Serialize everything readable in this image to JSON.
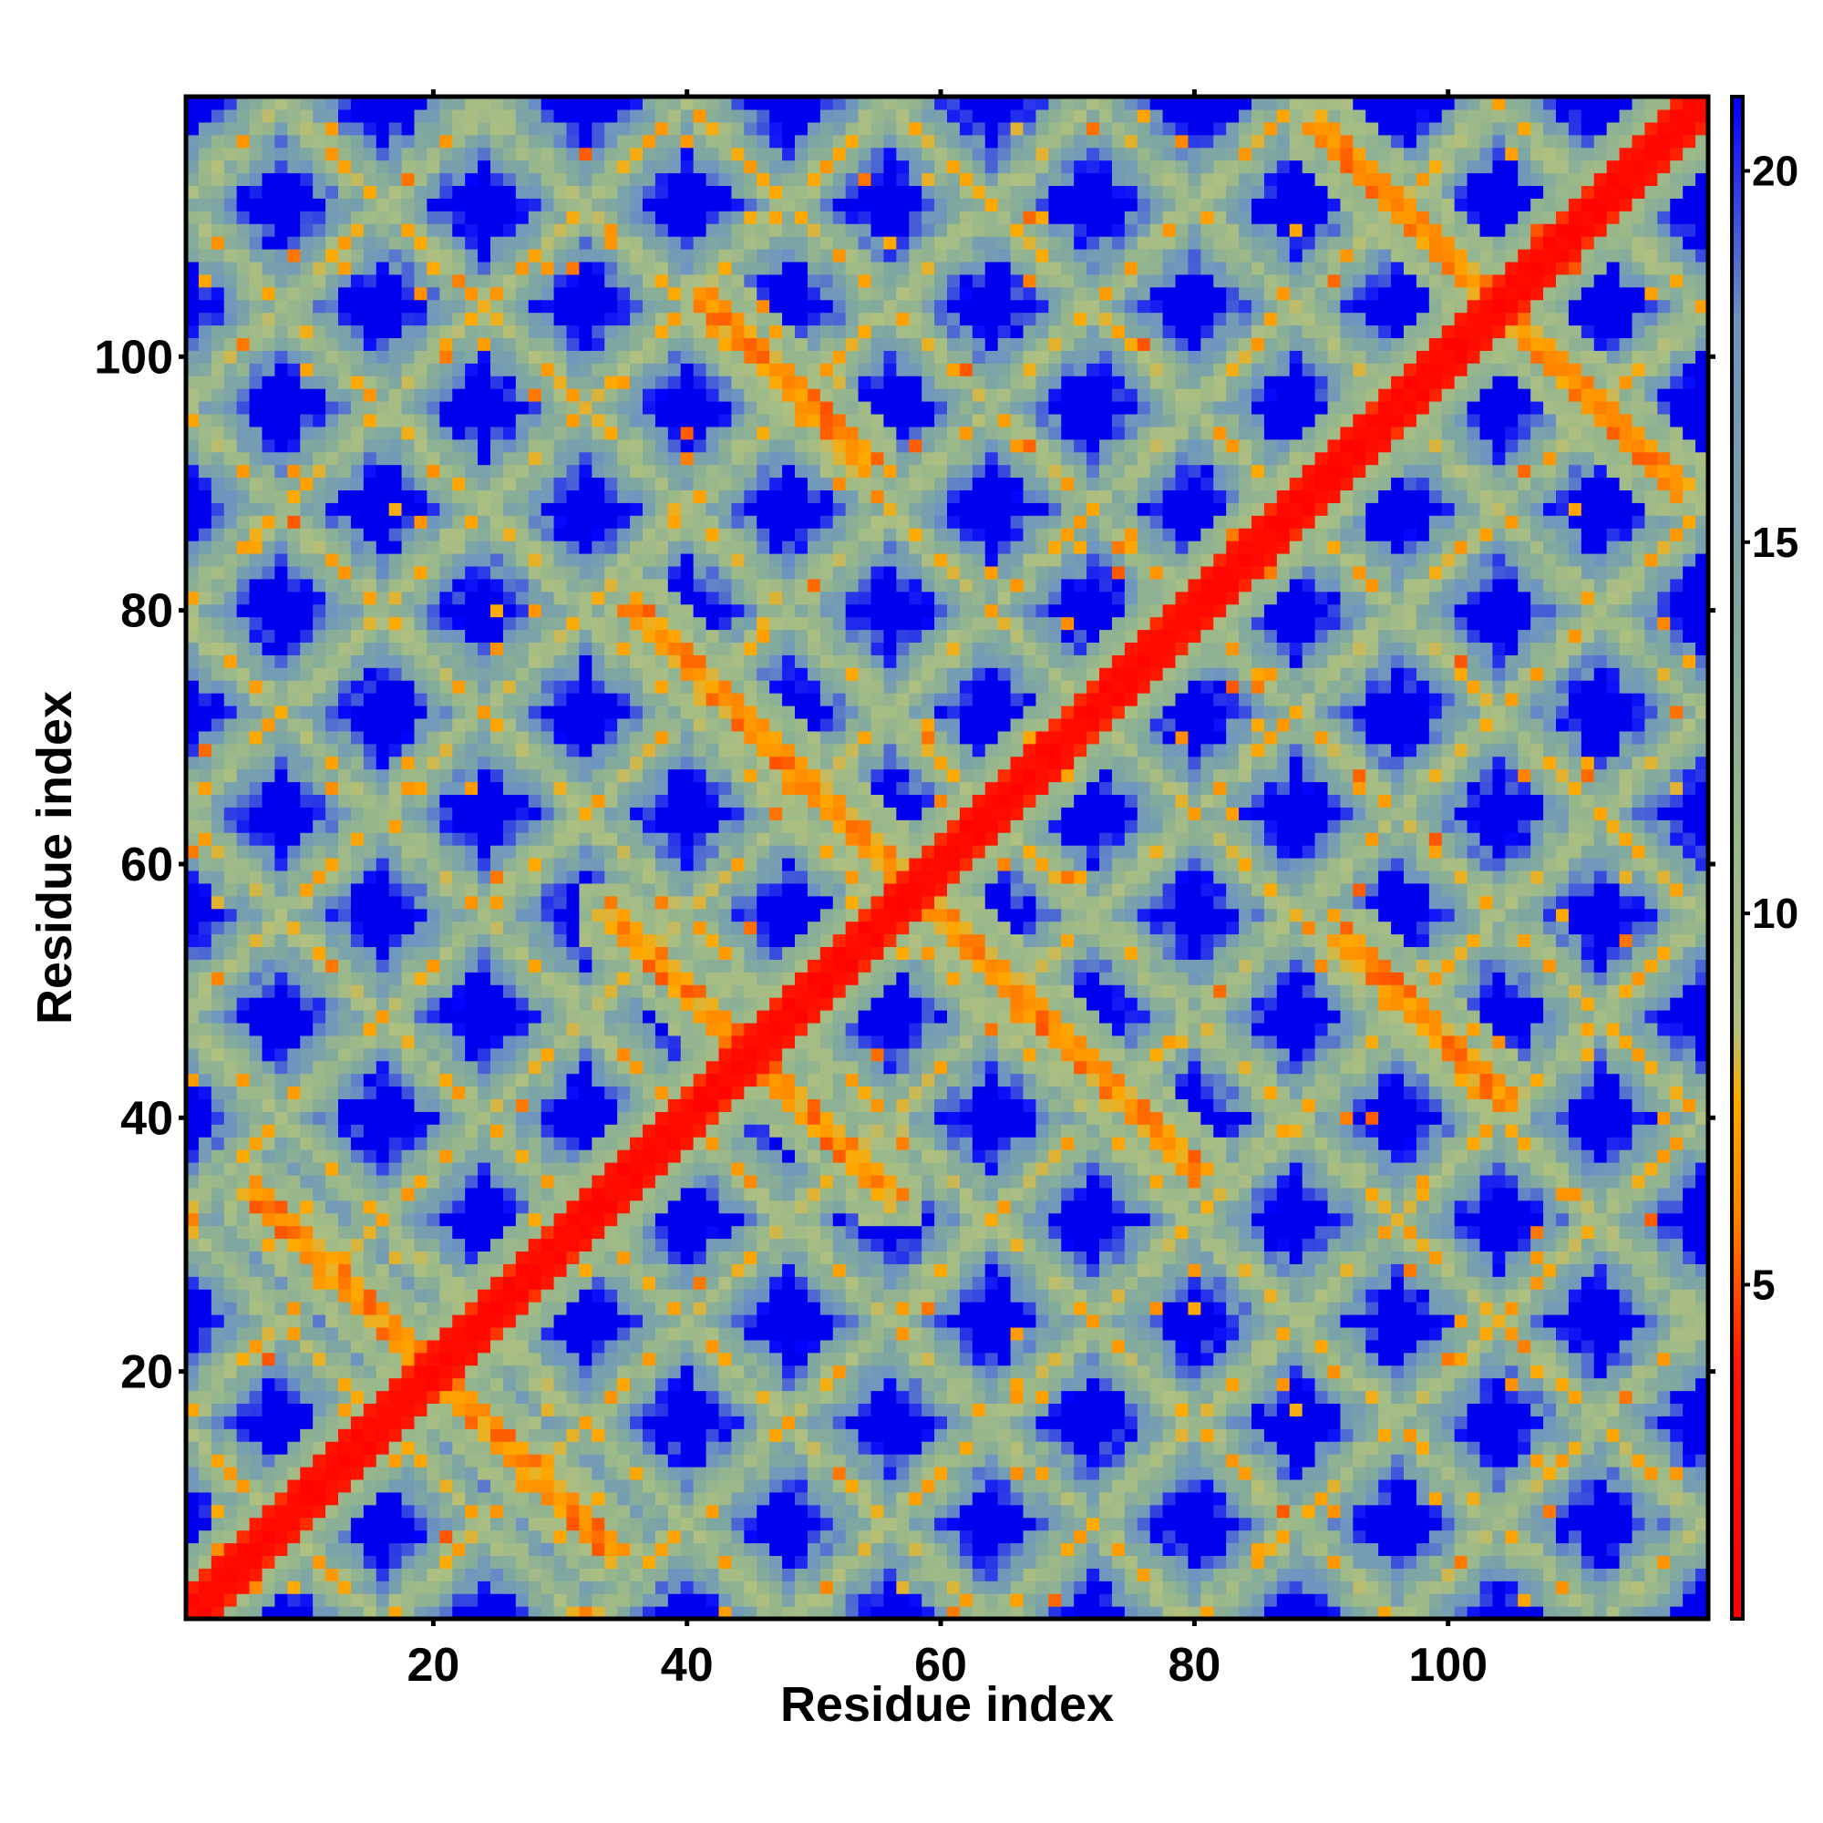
{
  "chart_data": {
    "type": "heatmap",
    "title": "",
    "xlabel": "Residue index",
    "ylabel": "Residue index",
    "n_residues": 120,
    "xlim": [
      0.5,
      120.5
    ],
    "ylim": [
      0.5,
      120.5
    ],
    "x_ticks": [
      20,
      40,
      60,
      80,
      100
    ],
    "y_ticks": [
      20,
      40,
      60,
      80,
      100
    ],
    "colorbar": {
      "ticks": [
        5,
        10,
        15,
        20
      ],
      "range": [
        0.5,
        21
      ],
      "max_color_value": 21,
      "colors": [
        {
          "value": 0.5,
          "color": "#ff0000"
        },
        {
          "value": 4.0,
          "color": "#ff1a00"
        },
        {
          "value": 6.0,
          "color": "#ff8800"
        },
        {
          "value": 7.5,
          "color": "#ffaa00"
        },
        {
          "value": 8.5,
          "color": "#b0c080"
        },
        {
          "value": 11.0,
          "color": "#9ab88a"
        },
        {
          "value": 14.0,
          "color": "#80a8a0"
        },
        {
          "value": 18.0,
          "color": "#6e95c0"
        },
        {
          "value": 21.0,
          "color": "#0000ff"
        }
      ],
      "out_of_range_color": "#0000ee"
    },
    "contact_structure": {
      "main_diagonal": {
        "from": 1,
        "to": 120,
        "min_distance": 1
      },
      "antiparallel_bands": [
        {
          "i_start": 20,
          "i_end": 34,
          "j_start": 20,
          "j_end": 6
        },
        {
          "i_start": 38,
          "i_end": 56,
          "j_start": 52,
          "j_end": 34
        },
        {
          "i_start": 60,
          "i_end": 80,
          "j_start": 56,
          "j_end": 36
        },
        {
          "i_start": 92,
          "i_end": 104,
          "j_start": 54,
          "j_end": 42
        },
        {
          "i_start": 104,
          "i_end": 118,
          "j_start": 104,
          "j_end": 90
        },
        {
          "i_start": 84,
          "i_end": 90,
          "j_start": 84,
          "j_end": 90
        }
      ],
      "contact_grid_spacing": 16,
      "background_distance": 22
    }
  }
}
